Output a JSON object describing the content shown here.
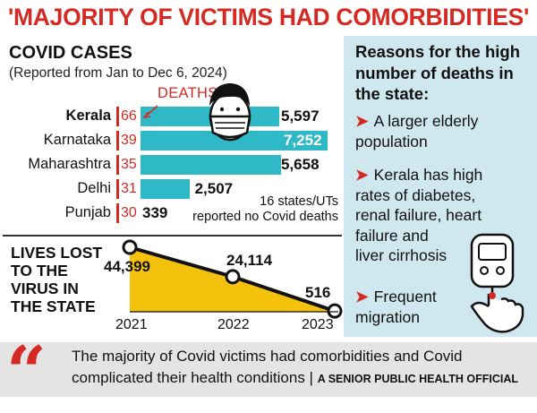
{
  "headline": "'MAJORITY OF VICTIMS HAD COMORBIDITIES'",
  "covid": {
    "title": "COVID CASES",
    "subtitle": "(Reported from Jan to Dec 6, 2024)",
    "deaths_label": "DEATHS",
    "note_line1": "16 states/UTs",
    "note_line2": "reported no Covid deaths"
  },
  "chart_data": [
    {
      "type": "bar",
      "orientation": "horizontal",
      "title": "COVID CASES",
      "subtitle": "(Reported from Jan to Dec 6, 2024)",
      "categories": [
        "Kerala",
        "Karnataka",
        "Maharashtra",
        "Delhi",
        "Punjab"
      ],
      "series": [
        {
          "name": "DEATHS",
          "values": [
            66,
            39,
            35,
            31,
            30
          ],
          "labels": [
            "66",
            "39",
            "35",
            "31",
            "30"
          ]
        },
        {
          "name": "COVID CASES",
          "values": [
            5597,
            7252,
            5658,
            2507,
            339
          ],
          "labels": [
            "5,597",
            "7,252",
            "5,658",
            "2,507",
            "339"
          ]
        }
      ],
      "annotations": [
        "16 states/UTs",
        "reported no Covid deaths"
      ]
    },
    {
      "type": "area",
      "title": "LIVES LOST TO THE VIRUS IN THE STATE",
      "x": [
        "2021",
        "2022",
        "2023"
      ],
      "values": [
        44399,
        24114,
        516
      ],
      "labels": [
        "44,399",
        "24,114",
        "516"
      ]
    }
  ],
  "lives": {
    "title_lines": [
      "LIVES LOST",
      "TO THE",
      "VIRUS IN",
      "THE STATE"
    ]
  },
  "reasons": {
    "title_lines": [
      "Reasons for the high",
      "number of deaths in",
      "the state:"
    ],
    "items": [
      {
        "lines": [
          "A larger elderly",
          "population"
        ]
      },
      {
        "lines": [
          "Kerala has high",
          "rates of  diabetes,",
          "renal failure, heart",
          "failure and",
          "liver cirrhosis"
        ]
      },
      {
        "lines": [
          "Frequent",
          "migration"
        ]
      }
    ],
    "arrow_glyph": "➤"
  },
  "quote": {
    "mark": "“",
    "line1": "The majority of Covid victims had comorbidities and Covid",
    "line2": "complicated their health conditions | ",
    "attribution": "A SENIOR PUBLIC HEALTH OFFICIAL"
  },
  "icons": [
    "masked-face-icon",
    "glucose-meter-icon",
    "quote-mark-icon",
    "arrow-icon"
  ],
  "colors": {
    "headline": "#d42a23",
    "bar": "#2fb9c6",
    "deaths_accent": "#d42a23",
    "area_fill": "#f4c20d",
    "reasons_panel": "#cfe7ee",
    "quote_panel": "#e4e4e4"
  }
}
